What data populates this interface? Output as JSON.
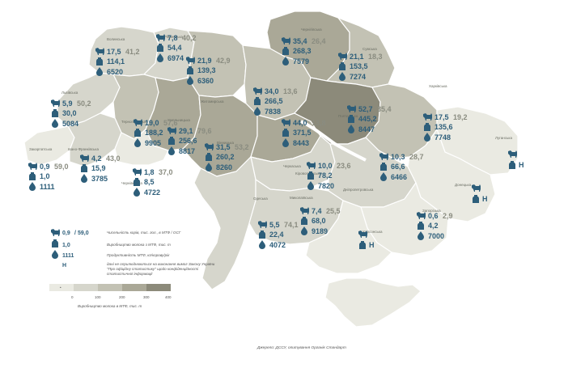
{
  "colors": {
    "c0": "#eaeae2",
    "c1": "#d6d6cc",
    "c2": "#c3c2b4",
    "c3": "#aaa897",
    "c4": "#8c8a7a",
    "text_dark": "#2d5e7a",
    "text_grey": "#8a8c80"
  },
  "regions": [
    {
      "key": "volyn",
      "name": "Волинська",
      "fill": "c1"
    },
    {
      "key": "rivne",
      "name": "Рівненська",
      "fill": "c1"
    },
    {
      "key": "zhytomyr",
      "name": "Житомирська",
      "fill": "c2"
    },
    {
      "key": "kyiv",
      "name": "Київська",
      "fill": "c2"
    },
    {
      "key": "chernihiv",
      "name": "Чернігівська",
      "fill": "c3"
    },
    {
      "key": "sumy",
      "name": "Сумська",
      "fill": "c2"
    },
    {
      "key": "lviv",
      "name": "Львівська",
      "fill": "c1"
    },
    {
      "key": "ternopil",
      "name": "Тернопільська",
      "fill": "c2"
    },
    {
      "key": "khmelnytskyi",
      "name": "Хмельницька",
      "fill": "c3"
    },
    {
      "key": "vinnytsia",
      "name": "Вінницька",
      "fill": "c3"
    },
    {
      "key": "cherkasy",
      "name": "Черкаська",
      "fill": "c3"
    },
    {
      "key": "poltava",
      "name": "Полтавська",
      "fill": "c4"
    },
    {
      "key": "kharkiv",
      "name": "Харківська",
      "fill": "c2"
    },
    {
      "key": "zakarpattia",
      "name": "Закарпатська",
      "fill": "c0"
    },
    {
      "key": "ivanofrankivsk",
      "name": "Івано-Франківська",
      "fill": "c1"
    },
    {
      "key": "chernivtsi",
      "name": "Чернівецька",
      "fill": "c0"
    },
    {
      "key": "kirovohrad",
      "name": "Кіровоградська",
      "fill": "c1"
    },
    {
      "key": "dnipro",
      "name": "Дніпропетровська",
      "fill": "c1"
    },
    {
      "key": "luhansk",
      "name": "Луганська",
      "fill": "c0"
    },
    {
      "key": "donetsk",
      "name": "Донецька",
      "fill": "c0"
    },
    {
      "key": "odesa",
      "name": "Одеська",
      "fill": "c1"
    },
    {
      "key": "mykolaiv",
      "name": "Миколаївська",
      "fill": "c1"
    },
    {
      "key": "zaporizhzhia",
      "name": "Запорізька",
      "fill": "c0"
    },
    {
      "key": "kherson",
      "name": "Херсонська",
      "fill": "c0"
    },
    {
      "key": "crimea",
      "name": "",
      "fill": "c0"
    }
  ],
  "stats": [
    {
      "key": "volyn",
      "cows": "17,5",
      "farms": "41,2",
      "milk": "114,1",
      "yield": "6520"
    },
    {
      "key": "rivne",
      "cows": "7,8",
      "farms": "40,2",
      "milk": "54,4",
      "yield": "6974"
    },
    {
      "key": "zhytomyr",
      "cows": "21,9",
      "farms": "42,9",
      "milk": "139,3",
      "yield": "6360"
    },
    {
      "key": "chernihiv",
      "cows": "35,4",
      "farms": "26,4",
      "milk": "268,3",
      "yield": "7579"
    },
    {
      "key": "sumy",
      "cows": "21,1",
      "farms": "18,3",
      "milk": "153,5",
      "yield": "7274"
    },
    {
      "key": "lviv",
      "cows": "5,9",
      "farms": "50,2",
      "milk": "30,0",
      "yield": "5084"
    },
    {
      "key": "kyiv",
      "cows": "34,0",
      "farms": "13,6",
      "milk": "266,5",
      "yield": "7838"
    },
    {
      "key": "poltava",
      "cows": "52,7",
      "farms": "35,4",
      "milk": "445,2",
      "yield": "8447"
    },
    {
      "key": "ternopil",
      "cows": "19,0",
      "farms": "57,6",
      "milk": "188,2",
      "yield": "9905"
    },
    {
      "key": "khmelnytskyi",
      "cows": "29,1",
      "farms": "79,6",
      "milk": "256,6",
      "yield": "8817"
    },
    {
      "key": "cherkasy",
      "cows": "44,0",
      "farms": "13,8",
      "milk": "371,5",
      "yield": "8443"
    },
    {
      "key": "kharkiv",
      "cows": "17,5",
      "farms": "19,2",
      "milk": "135,6",
      "yield": "7748"
    },
    {
      "key": "vinnytsia",
      "cows": "31,5",
      "farms": "53,2",
      "milk": "260,2",
      "yield": "8260"
    },
    {
      "key": "ivanofrankivsk",
      "cows": "4,2",
      "farms": "43,0",
      "milk": "15,9",
      "yield": "3785"
    },
    {
      "key": "zakarpattia",
      "cows": "0,9",
      "farms": "59,0",
      "milk": "1,0",
      "yield": "1111"
    },
    {
      "key": "chernivtsi",
      "cows": "1,8",
      "farms": "37,0",
      "milk": "8,5",
      "yield": "4722"
    },
    {
      "key": "kirovohrad",
      "cows": "10,0",
      "farms": "23,6",
      "milk": "78,2",
      "yield": "7820"
    },
    {
      "key": "dnipro",
      "cows": "10,3",
      "farms": "28,7",
      "milk": "66,6",
      "yield": "6466"
    },
    {
      "key": "mykolaiv",
      "cows": "7,4",
      "farms": "25,5",
      "milk": "68,0",
      "yield": "9189"
    },
    {
      "key": "odesa",
      "cows": "5,5",
      "farms": "74,1",
      "milk": "22,4",
      "yield": "4072"
    },
    {
      "key": "zaporizhzhia",
      "cows": "0,6",
      "farms": "2,9",
      "milk": "4,2",
      "yield": "7000"
    },
    {
      "key": "luhansk",
      "n": "Н"
    },
    {
      "key": "donetsk",
      "n": "Н"
    },
    {
      "key": "kherson",
      "n": "Н"
    }
  ],
  "legend": {
    "cows": "0,9",
    "farms": "59,0",
    "cows_desc": "Чисельність корів, тис. гол., в МТФ / ОСГ",
    "milk": "1,0",
    "milk_desc": "Виробництво молока з МТФ, тис. т",
    "yield": "1111",
    "yield_desc": "Продуктивність МТФ, кг/корову/рік",
    "n": "Н",
    "n_desc_1": "дані не оприлюднюються на виконання вимог Закону України",
    "n_desc_2": "\"Про офіційну статистику\" щодо конфіденційності",
    "n_desc_3": "статистичної інформації"
  },
  "scale": {
    "labels": [
      "0",
      "100",
      "200",
      "300",
      "400"
    ],
    "title": "Виробництво молока в МТФ, тис. т"
  },
  "source": "Джерело: ДССУ, опитування Органік Стандарт"
}
